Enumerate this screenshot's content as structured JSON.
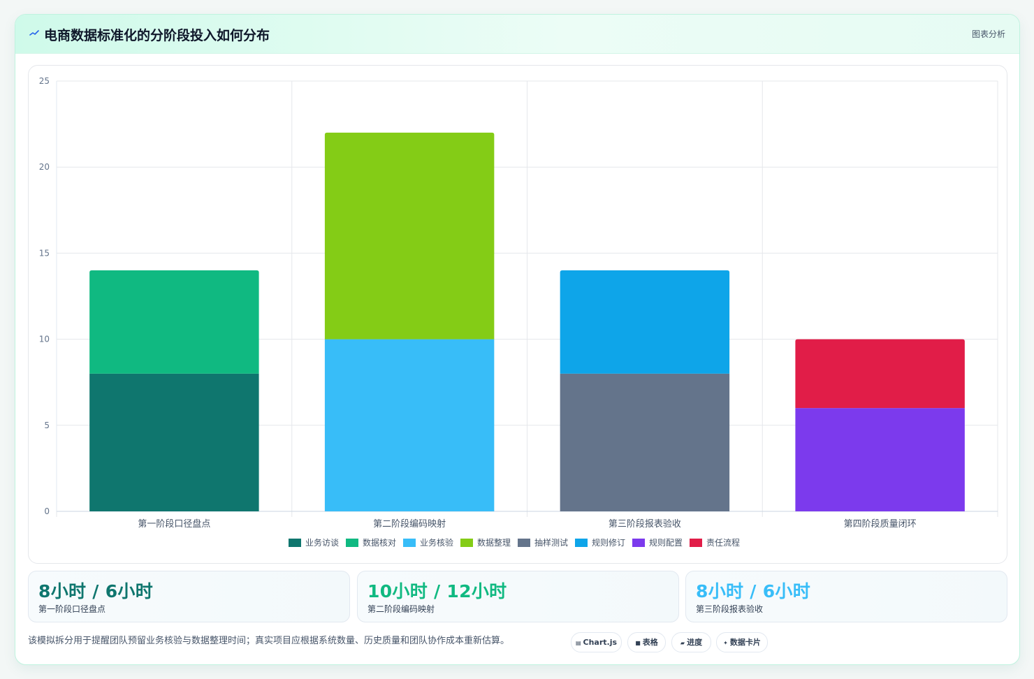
{
  "header": {
    "title": "电商数据标准化的分阶段投入如何分布",
    "analysis_label": "图表分析"
  },
  "chart_data": {
    "type": "bar",
    "stacked": true,
    "categories": [
      "第一阶段口径盘点",
      "第二阶段编码映射",
      "第三阶段报表验收",
      "第四阶段质量闭环"
    ],
    "ylim": [
      0,
      25
    ],
    "yticks": [
      0,
      5,
      10,
      15,
      20,
      25
    ],
    "grid": true,
    "legend_position": "bottom",
    "series": [
      {
        "name": "业务访谈",
        "color": "#0f766e",
        "values": [
          8,
          0,
          0,
          0
        ]
      },
      {
        "name": "数据核对",
        "color": "#10b981",
        "values": [
          6,
          0,
          0,
          0
        ]
      },
      {
        "name": "业务核验",
        "color": "#38bdf8",
        "values": [
          0,
          10,
          0,
          0
        ]
      },
      {
        "name": "数据整理",
        "color": "#84cc16",
        "values": [
          0,
          12,
          0,
          0
        ]
      },
      {
        "name": "抽样测试",
        "color": "#64748b",
        "values": [
          0,
          0,
          8,
          0
        ]
      },
      {
        "name": "规则修订",
        "color": "#0ea5e9",
        "values": [
          0,
          0,
          6,
          0
        ]
      },
      {
        "name": "规则配置",
        "color": "#7c3aed",
        "values": [
          0,
          0,
          0,
          6
        ]
      },
      {
        "name": "责任流程",
        "color": "#e11d48",
        "values": [
          0,
          0,
          0,
          4
        ]
      }
    ]
  },
  "stats": [
    {
      "value": "8小时 / 6小时",
      "label": "第一阶段口径盘点",
      "color": "#0f766e"
    },
    {
      "value": "10小时 / 12小时",
      "label": "第二阶段编码映射",
      "color": "#10b981"
    },
    {
      "value": "8小时 / 6小时",
      "label": "第三阶段报表验收",
      "color": "#38bdf8"
    }
  ],
  "footer": {
    "note": "该模拟拆分用于提醒团队预留业务核验与数据整理时间；真实项目应根据系统数量、历史质量和团队协作成本重新估算。",
    "tags": [
      {
        "icon": "▤",
        "label": "Chart.js"
      },
      {
        "icon": "■",
        "label": "表格"
      },
      {
        "icon": "▰",
        "label": "进度"
      },
      {
        "icon": "✦",
        "label": "数据卡片"
      }
    ]
  }
}
